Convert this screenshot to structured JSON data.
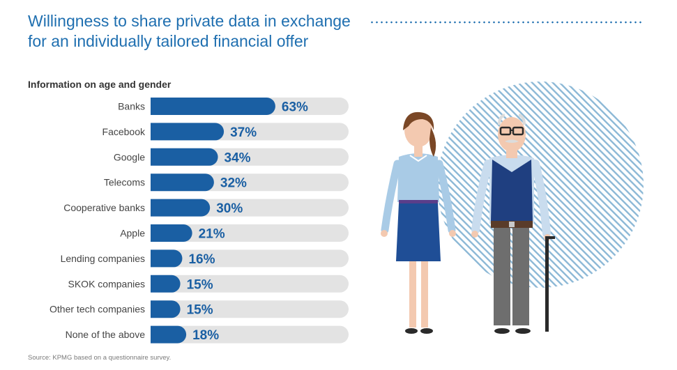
{
  "title_line1": "Willingness to share private data in exchange",
  "title_line2": "for an individually tailored financial offer",
  "source": "Source: KPMG based on a questionnaire survey.",
  "colors": {
    "accent": "#1a5fa3",
    "track": "#e3e3e3",
    "title": "#1f6fb0"
  },
  "chart_data": {
    "type": "bar",
    "orientation": "horizontal",
    "title": "Information on age and gender",
    "categories": [
      "Banks",
      "Facebook",
      "Google",
      "Telecoms",
      "Cooperative banks",
      "Apple",
      "Lending companies",
      "SKOK companies",
      "Other tech companies",
      "None of the above"
    ],
    "values": [
      63,
      37,
      34,
      32,
      30,
      21,
      16,
      15,
      15,
      18
    ],
    "value_labels": [
      "63%",
      "37%",
      "34%",
      "32%",
      "30%",
      "21%",
      "16%",
      "15%",
      "15%",
      "18%"
    ],
    "xlim": [
      0,
      100
    ],
    "grid": false,
    "legend": "none"
  }
}
